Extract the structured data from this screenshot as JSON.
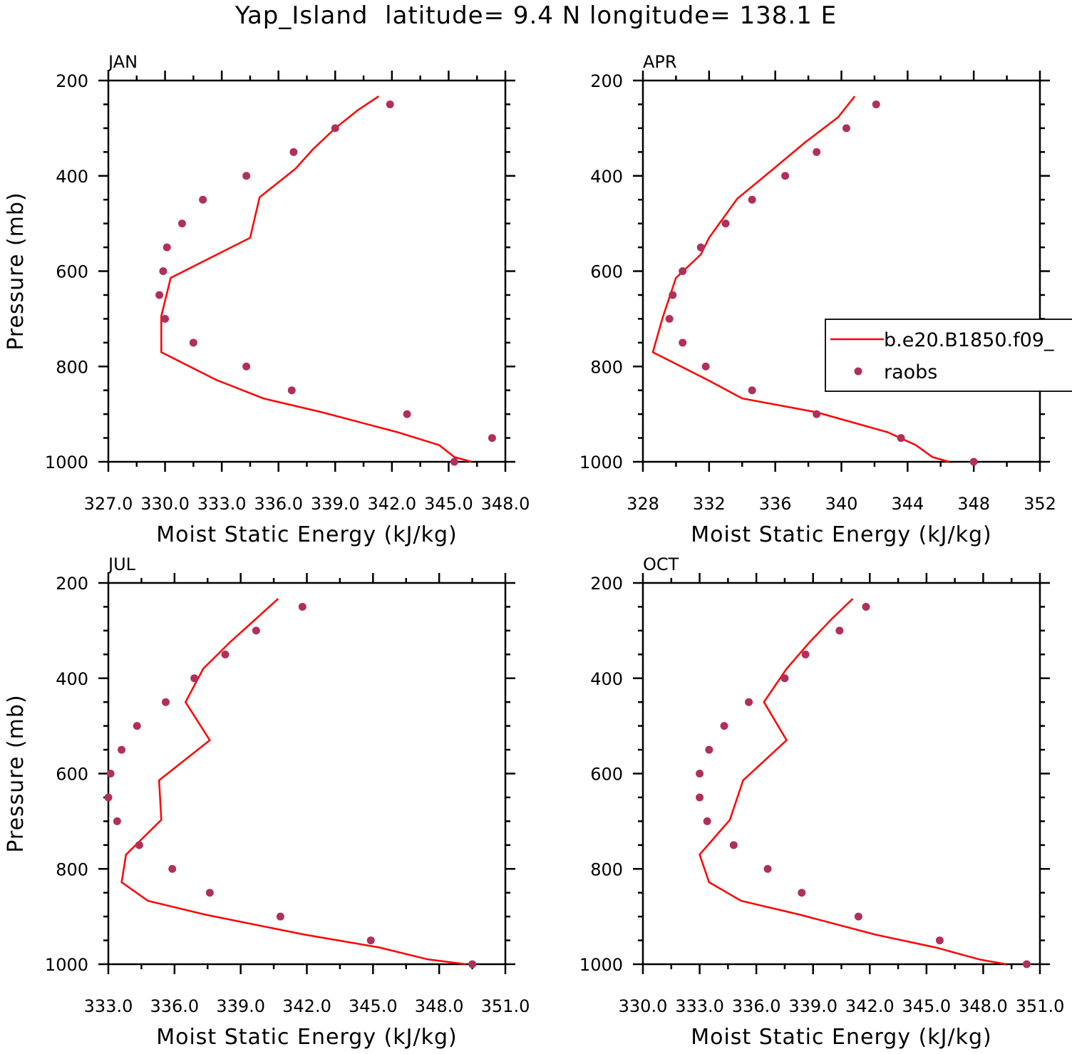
{
  "title": "Yap_Island  latitude= 9.4 N longitude= 138.1 E",
  "colors": {
    "model": "#ff0000",
    "raobs": "#b0305a",
    "axis": "#000000"
  },
  "legend": {
    "model_label": "b.e20.B1850.f09_",
    "raobs_label": "raobs"
  },
  "chart_data": [
    {
      "type": "line",
      "panel": "JAN",
      "title": "JAN",
      "xlabel": "Moist Static Energy (kJ/kg)",
      "ylabel": "Pressure (mb)",
      "xlim": [
        327.0,
        348.0
      ],
      "ylim": [
        1000,
        200
      ],
      "xticks": [
        327.0,
        330.0,
        333.0,
        336.0,
        339.0,
        342.0,
        345.0,
        348.0
      ],
      "xtick_labels": [
        "327.0",
        "330.0",
        "333.0",
        "336.0",
        "339.0",
        "342.0",
        "345.0",
        "348.0"
      ],
      "yticks": [
        200,
        400,
        600,
        800,
        1000
      ],
      "ytick_labels": [
        "200",
        "400",
        "600",
        "800",
        "1000"
      ],
      "model": {
        "pressure": [
          233,
          262,
          300,
          345,
          385,
          445,
          530,
          614,
          694,
          770,
          828,
          867,
          896,
          938,
          965,
          990,
          1000
        ],
        "mse": [
          341.3,
          340.2,
          339.0,
          337.8,
          336.9,
          335.0,
          334.5,
          330.3,
          329.8,
          329.8,
          332.7,
          335.2,
          338.3,
          342.3,
          344.5,
          345.3,
          346.2
        ]
      },
      "raobs": {
        "pressure": [
          250,
          300,
          350,
          400,
          450,
          500,
          550,
          600,
          650,
          700,
          750,
          800,
          850,
          900,
          950,
          1000
        ],
        "mse": [
          341.9,
          339.0,
          336.8,
          334.3,
          332.0,
          330.9,
          330.1,
          329.9,
          329.7,
          330.0,
          331.5,
          334.3,
          336.7,
          342.8,
          347.3,
          345.3
        ]
      }
    },
    {
      "type": "line",
      "panel": "APR",
      "title": "APR",
      "xlabel": "Moist Static Energy (kJ/kg)",
      "ylabel": "",
      "xlim": [
        328,
        352
      ],
      "ylim": [
        1000,
        200
      ],
      "xticks": [
        328,
        332,
        336,
        340,
        344,
        348,
        352
      ],
      "xtick_labels": [
        "328",
        "332",
        "336",
        "340",
        "344",
        "348",
        "352"
      ],
      "yticks": [
        200,
        400,
        600,
        800,
        1000
      ],
      "ytick_labels": [
        "200",
        "400",
        "600",
        "800",
        "1000"
      ],
      "model": {
        "pressure": [
          233,
          277,
          330,
          388,
          448,
          530,
          565,
          614,
          697,
          770,
          828,
          867,
          896,
          938,
          965,
          990,
          1000
        ],
        "mse": [
          340.8,
          339.8,
          337.8,
          335.8,
          333.7,
          332.0,
          331.5,
          330.0,
          329.2,
          328.6,
          331.9,
          334.0,
          338.5,
          342.8,
          344.5,
          345.5,
          346.5
        ]
      },
      "raobs": {
        "pressure": [
          250,
          300,
          350,
          400,
          450,
          500,
          550,
          600,
          650,
          700,
          750,
          800,
          850,
          900,
          950,
          1000
        ],
        "mse": [
          342.1,
          340.3,
          338.5,
          336.6,
          334.6,
          333.0,
          331.5,
          330.4,
          329.8,
          329.6,
          330.4,
          331.8,
          334.6,
          338.5,
          343.6,
          348.0
        ]
      }
    },
    {
      "type": "line",
      "panel": "JUL",
      "title": "JUL",
      "xlabel": "Moist Static Energy (kJ/kg)",
      "ylabel": "Pressure (mb)",
      "xlim": [
        333.0,
        351.0
      ],
      "ylim": [
        1000,
        200
      ],
      "xticks": [
        333.0,
        336.0,
        339.0,
        342.0,
        345.0,
        348.0,
        351.0
      ],
      "xtick_labels": [
        "333.0",
        "336.0",
        "339.0",
        "342.0",
        "345.0",
        "348.0",
        "351.0"
      ],
      "yticks": [
        200,
        400,
        600,
        800,
        1000
      ],
      "ytick_labels": [
        "200",
        "400",
        "600",
        "800",
        "1000"
      ],
      "model": {
        "pressure": [
          233,
          275,
          325,
          380,
          450,
          530,
          614,
          697,
          770,
          828,
          867,
          896,
          938,
          965,
          990,
          1000
        ],
        "mse": [
          340.7,
          339.7,
          338.5,
          337.3,
          336.5,
          337.6,
          335.3,
          335.4,
          333.8,
          333.6,
          334.8,
          337.4,
          341.9,
          345.3,
          347.5,
          349.2
        ]
      },
      "raobs": {
        "pressure": [
          250,
          300,
          350,
          400,
          450,
          500,
          550,
          600,
          650,
          700,
          750,
          800,
          850,
          900,
          950,
          1000
        ],
        "mse": [
          341.8,
          339.7,
          338.3,
          336.9,
          335.6,
          334.3,
          333.6,
          333.1,
          333.0,
          333.4,
          334.4,
          335.9,
          337.6,
          340.8,
          344.9,
          349.5
        ]
      }
    },
    {
      "type": "line",
      "panel": "OCT",
      "title": "OCT",
      "xlabel": "Moist Static Energy (kJ/kg)",
      "ylabel": "",
      "xlim": [
        330.0,
        351.0
      ],
      "ylim": [
        1000,
        200
      ],
      "xticks": [
        330.0,
        333.0,
        336.0,
        339.0,
        342.0,
        345.0,
        348.0,
        351.0
      ],
      "xtick_labels": [
        "330.0",
        "333.0",
        "336.0",
        "339.0",
        "342.0",
        "345.0",
        "348.0",
        "351.0"
      ],
      "yticks": [
        200,
        400,
        600,
        800,
        1000
      ],
      "ytick_labels": [
        "200",
        "400",
        "600",
        "800",
        "1000"
      ],
      "model": {
        "pressure": [
          233,
          275,
          325,
          380,
          450,
          530,
          614,
          697,
          770,
          828,
          867,
          896,
          938,
          965,
          990,
          1000
        ],
        "mse": [
          341.1,
          340.0,
          338.8,
          337.6,
          336.4,
          337.6,
          335.3,
          334.6,
          333.0,
          333.5,
          335.2,
          338.3,
          342.3,
          345.5,
          347.8,
          349.2
        ]
      },
      "raobs": {
        "pressure": [
          250,
          300,
          350,
          400,
          450,
          500,
          550,
          600,
          650,
          700,
          750,
          800,
          850,
          900,
          950,
          1000
        ],
        "mse": [
          341.8,
          340.4,
          338.6,
          337.5,
          335.6,
          334.3,
          333.5,
          333.0,
          333.0,
          333.4,
          334.8,
          336.6,
          338.4,
          341.4,
          345.7,
          350.3
        ]
      }
    }
  ]
}
